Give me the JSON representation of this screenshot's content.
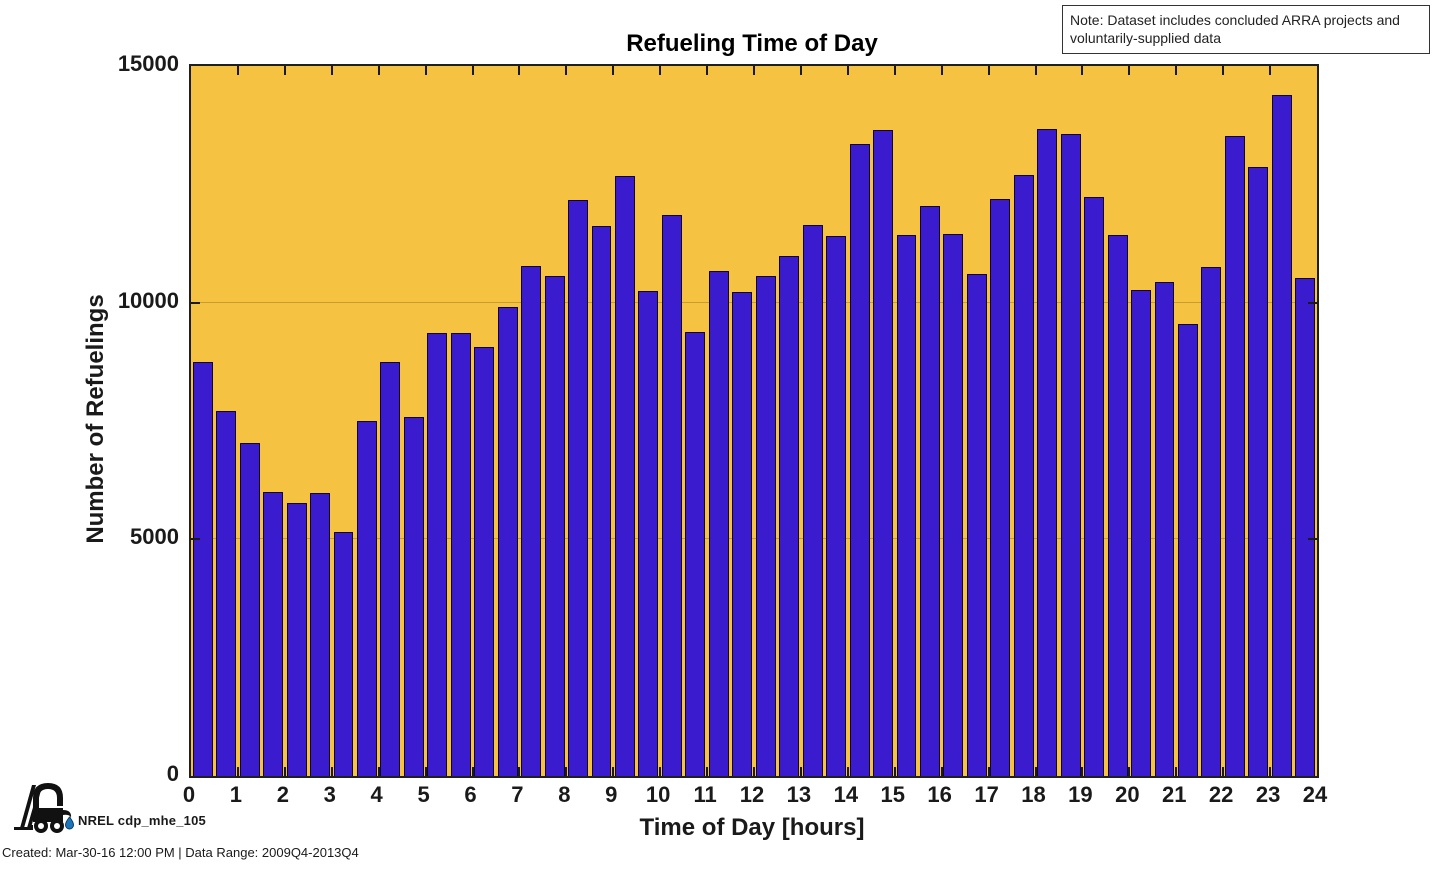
{
  "note": {
    "text": "Note: Dataset includes concluded ARRA projects and voluntarily-supplied data"
  },
  "footer": {
    "logo_icon": "forklift-with-hydrogen-droplet-icon",
    "logo_label": "NREL cdp_mhe_105",
    "created": "Created: Mar-30-16 12:00 PM | Data Range: 2009Q4-2013Q4"
  },
  "colors": {
    "plot_background": "#F5C242",
    "bar_fill": "#3A1BCE",
    "bar_edge": "#10062E",
    "axis": "#1F1F1F",
    "droplet_blue": "#1B75BB"
  },
  "chart_data": {
    "type": "bar",
    "title": "Refueling Time of Day",
    "xlabel": "Time of Day [hours]",
    "ylabel": "Number of Refuelings",
    "xlim": [
      0,
      24
    ],
    "ylim": [
      0,
      15000
    ],
    "grid": "horizontal gridlines at y ticks, drawn beneath bars; box axes with inward ticks",
    "legend_position": "none",
    "xtick_labels": [
      "0",
      "1",
      "2",
      "3",
      "4",
      "5",
      "6",
      "7",
      "8",
      "9",
      "10",
      "11",
      "12",
      "13",
      "14",
      "15",
      "16",
      "17",
      "18",
      "19",
      "20",
      "21",
      "22",
      "23",
      "24"
    ],
    "ytick_values": [
      0,
      5000,
      10000,
      15000
    ],
    "ytick_labels": [
      "0",
      "5000",
      "10000",
      "15000"
    ],
    "bin_width_hours": 0.5,
    "bin_start_hours": [
      0,
      0.5,
      1,
      1.5,
      2,
      2.5,
      3,
      3.5,
      4,
      4.5,
      5,
      5.5,
      6,
      6.5,
      7,
      7.5,
      8,
      8.5,
      9,
      9.5,
      10,
      10.5,
      11,
      11.5,
      12,
      12.5,
      13,
      13.5,
      14,
      14.5,
      15,
      15.5,
      16,
      16.5,
      17,
      17.5,
      18,
      18.5,
      19,
      19.5,
      20,
      20.5,
      21,
      21.5,
      22,
      22.5,
      23,
      23.5
    ],
    "values": [
      8750,
      7720,
      7030,
      6010,
      5760,
      5980,
      5160,
      7500,
      8740,
      7590,
      9370,
      9370,
      9070,
      9910,
      10770,
      10560,
      12160,
      11630,
      12680,
      10250,
      11860,
      9390,
      10660,
      10230,
      10560,
      10980,
      11650,
      11410,
      13350,
      13640,
      11440,
      12040,
      11460,
      10600,
      12200,
      12690,
      13660,
      13560,
      12230,
      11430,
      10260,
      10430,
      9540,
      10750,
      13530,
      12870,
      14380,
      10530
    ]
  }
}
